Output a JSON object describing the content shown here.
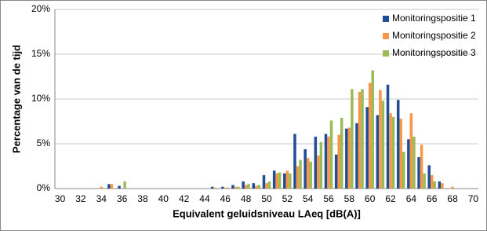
{
  "chart_data": {
    "type": "bar",
    "x_label": "Equivalent geluidsniveau LAeq [dB(A)]",
    "y_label": "Percentage van de tijd",
    "categories": [
      "30",
      null,
      "32",
      null,
      "34",
      null,
      "36",
      null,
      "38",
      null,
      "40",
      null,
      "42",
      null,
      "44",
      null,
      "46",
      null,
      "48",
      null,
      "50",
      null,
      "52",
      null,
      "54",
      null,
      "56",
      null,
      "58",
      null,
      "60",
      null,
      "62",
      null,
      "64",
      null,
      "66",
      null,
      "68",
      null,
      "70"
    ],
    "series": [
      {
        "name": "Monitoringspositie 1",
        "color": "#1f4e96",
        "values": [
          0,
          0,
          0,
          0,
          0,
          0.5,
          0.3,
          0,
          0,
          0,
          0,
          0,
          0,
          0,
          0,
          0.2,
          0.2,
          0.4,
          0.8,
          0.6,
          1.5,
          2.0,
          1.7,
          6.1,
          4.4,
          5.8,
          6.1,
          3.8,
          6.7,
          7.3,
          9.1,
          8.2,
          11.6,
          9.9,
          5.5,
          3.5,
          2.6,
          0.8,
          0,
          0,
          0
        ]
      },
      {
        "name": "Monitoringspositie 2",
        "color": "#f79646",
        "values": [
          0,
          0,
          0,
          0,
          0.2,
          0.5,
          0,
          0,
          0,
          0,
          0,
          0,
          0,
          0,
          0,
          0.1,
          0.1,
          0.2,
          0.4,
          0.3,
          0.6,
          1.7,
          2.0,
          2.5,
          3.4,
          3.7,
          5.8,
          6.0,
          6.8,
          10.8,
          11.8,
          11.0,
          8.4,
          7.8,
          8.4,
          4.9,
          1.5,
          0.6,
          0.2,
          0,
          0
        ]
      },
      {
        "name": "Monitoringspositie 3",
        "color": "#9bbb59",
        "values": [
          0,
          0,
          0,
          0,
          0,
          0,
          0.8,
          0,
          0,
          0,
          0,
          0,
          0,
          0,
          0,
          0,
          0.1,
          0.2,
          0.5,
          0.4,
          0.8,
          1.8,
          1.7,
          3.2,
          3.0,
          5.2,
          7.6,
          7.9,
          11.1,
          11.1,
          13.2,
          9.8,
          8.0,
          4.1,
          5.8,
          1.7,
          0.8,
          0,
          0,
          0,
          0
        ]
      }
    ],
    "ylim": [
      0,
      20
    ],
    "yticks": [
      {
        "value": 0,
        "label": "0%"
      },
      {
        "value": 5,
        "label": "5%"
      },
      {
        "value": 10,
        "label": "10%"
      },
      {
        "value": 15,
        "label": "15%"
      },
      {
        "value": 20,
        "label": "20%"
      }
    ],
    "grid": true,
    "legend": "top-right"
  }
}
